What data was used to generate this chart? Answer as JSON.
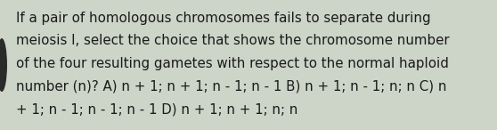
{
  "text_lines": [
    "If a pair of homologous chromosomes fails to separate during",
    "meiosis I, select the choice that shows the chromosome number",
    "of the four resulting gametes with respect to the normal haploid",
    "number (n)? A) n + 1; n + 1; n - 1; n - 1 B) n + 1; n - 1; n; n C) n",
    "+ 1; n - 1; n - 1; n - 1 D) n + 1; n + 1; n; n"
  ],
  "background_color": "#cdd4c8",
  "text_color": "#1a1a1a",
  "font_size": 10.8,
  "left_oval_color": "#2a2a2a",
  "figwidth": 5.58,
  "figheight": 1.46,
  "dpi": 100
}
